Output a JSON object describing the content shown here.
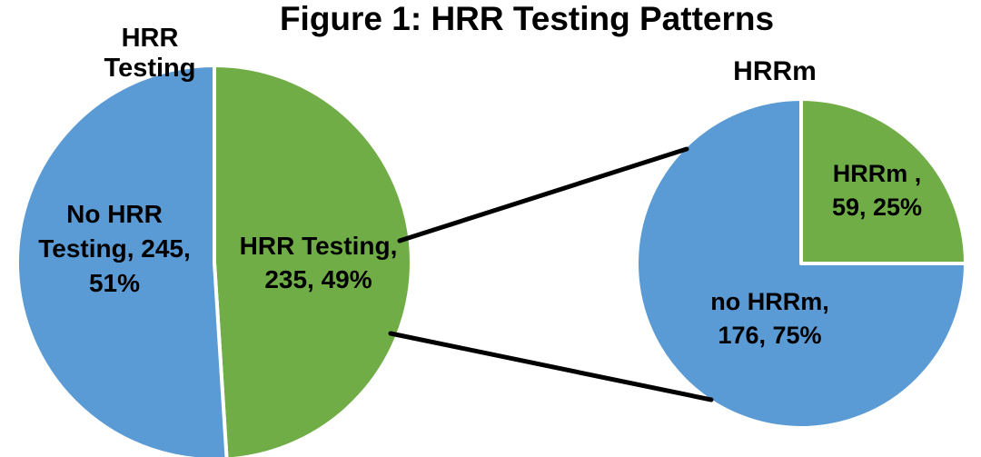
{
  "figure": {
    "title": "Figure 1: HRR Testing Patterns"
  },
  "chart_data": [
    {
      "type": "pie",
      "title": "HRR Testing",
      "start_angle_deg": 0,
      "direction": "clockwise",
      "slices": [
        {
          "label": "HRR Testing",
          "value": 235,
          "pct": 49,
          "color": "#70AD47"
        },
        {
          "label": "No HRR Testing",
          "value": 245,
          "pct": 51,
          "color": "#5B9BD5"
        }
      ],
      "data_label_format": "label, value, percent"
    },
    {
      "type": "pie",
      "title": "HRRm",
      "start_angle_deg": 0,
      "direction": "clockwise",
      "slices": [
        {
          "label": "HRRm",
          "value": 59,
          "pct": 25,
          "color": "#70AD47"
        },
        {
          "label": "no HRRm",
          "value": 176,
          "pct": 75,
          "color": "#5B9BD5"
        }
      ],
      "data_label_format": "label, value, percent"
    }
  ],
  "labels": {
    "left_blue_lines": [
      "No HRR",
      "Testing, 245,",
      "51%"
    ],
    "left_green_lines": [
      "HRR Testing,",
      "235, 49%"
    ],
    "right_green_lines": [
      "HRRm ,",
      "59, 25%"
    ],
    "right_blue_lines": [
      "no HRRm,",
      "176, 75%"
    ]
  },
  "colors": {
    "blue": "#5B9BD5",
    "green": "#70AD47",
    "connector": "#000000",
    "text": "#000000",
    "slice_border": "#FFFFFF"
  }
}
